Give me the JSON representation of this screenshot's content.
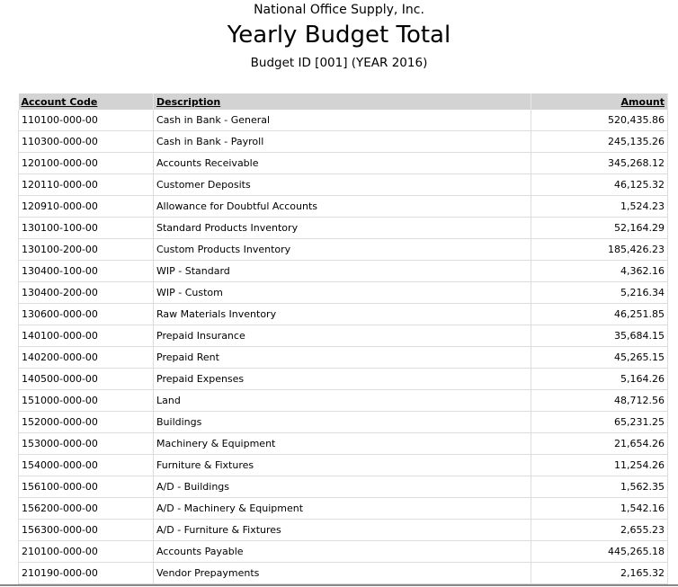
{
  "header": {
    "company": "National Office Supply, Inc.",
    "title": "Yearly Budget Total",
    "subtitle": "Budget ID [001] (YEAR 2016)"
  },
  "table": {
    "columns": [
      "Account Code",
      "Description",
      "Amount"
    ],
    "rows": [
      [
        "110100-000-00",
        "Cash in Bank - General",
        "520,435.86"
      ],
      [
        "110300-000-00",
        "Cash in Bank - Payroll",
        "245,135.26"
      ],
      [
        "120100-000-00",
        "Accounts Receivable",
        "345,268.12"
      ],
      [
        "120110-000-00",
        "Customer Deposits",
        "46,125.32"
      ],
      [
        "120910-000-00",
        "Allowance for Doubtful Accounts",
        "1,524.23"
      ],
      [
        "130100-100-00",
        "Standard Products Inventory",
        "52,164.29"
      ],
      [
        "130100-200-00",
        "Custom Products Inventory",
        "185,426.23"
      ],
      [
        "130400-100-00",
        "WIP - Standard",
        "4,362.16"
      ],
      [
        "130400-200-00",
        "WIP - Custom",
        "5,216.34"
      ],
      [
        "130600-000-00",
        "Raw Materials Inventory",
        "46,251.85"
      ],
      [
        "140100-000-00",
        "Prepaid Insurance",
        "35,684.15"
      ],
      [
        "140200-000-00",
        "Prepaid Rent",
        "45,265.15"
      ],
      [
        "140500-000-00",
        "Prepaid Expenses",
        "5,164.26"
      ],
      [
        "151000-000-00",
        "Land",
        "48,712.56"
      ],
      [
        "152000-000-00",
        "Buildings",
        "65,231.25"
      ],
      [
        "153000-000-00",
        "Machinery & Equipment",
        "21,654.26"
      ],
      [
        "154000-000-00",
        "Furniture & Fixtures",
        "11,254.26"
      ],
      [
        "156100-000-00",
        "A/D - Buildings",
        "1,562.35"
      ],
      [
        "156200-000-00",
        "A/D - Machinery & Equipment",
        "1,542.16"
      ],
      [
        "156300-000-00",
        "A/D - Furniture & Fixtures",
        "2,655.23"
      ],
      [
        "210100-000-00",
        "Accounts Payable",
        "445,265.18"
      ],
      [
        "210190-000-00",
        "Vendor Prepayments",
        "2,165.32"
      ]
    ]
  }
}
